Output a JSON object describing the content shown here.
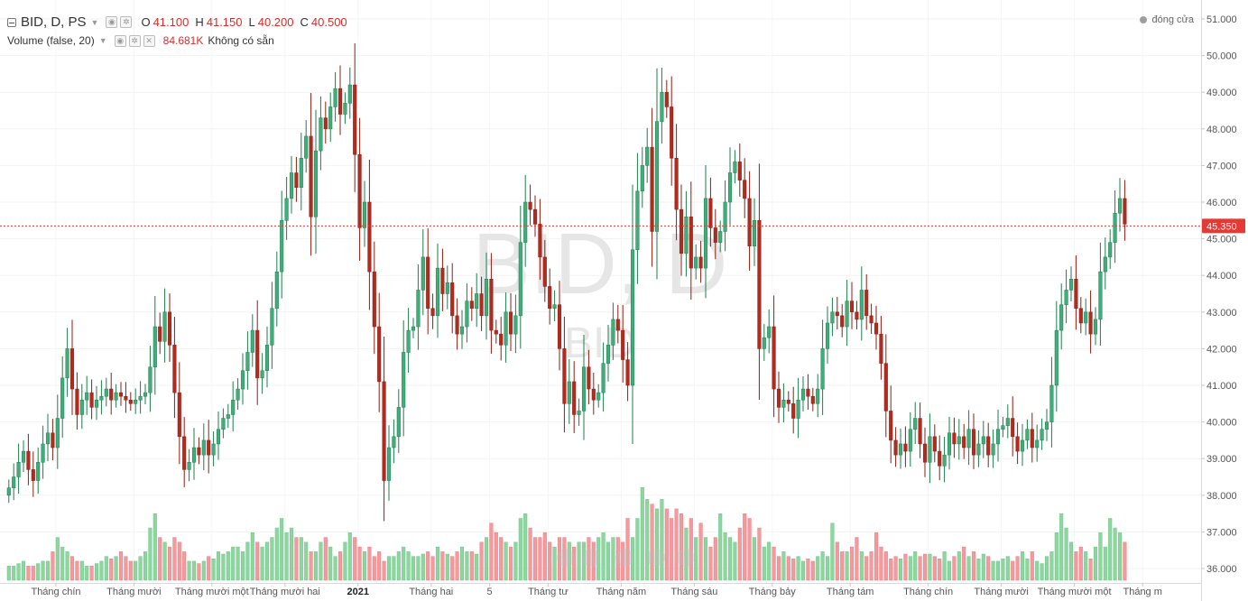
{
  "legend": {
    "symbol": "BID, D, PS",
    "open_label": "O",
    "open_value": "41.100",
    "high_label": "H",
    "high_value": "41.150",
    "low_label": "L",
    "low_value": "40.200",
    "close_label": "C",
    "close_value": "40.500",
    "volume_title": "Volume (false, 20)",
    "volume_value": "84.681K",
    "volume_na": "Không có sẵn"
  },
  "market_status": "đóng cửa",
  "watermark": {
    "main": "BID, D",
    "sub": "BID"
  },
  "colors": {
    "up": "#26a69a",
    "up_fill": "#3fae7b",
    "down": "#b22b1e",
    "vol_up": "#8ed6a0",
    "vol_down": "#f4999d",
    "price_line": "#e53935"
  },
  "chart_data": {
    "type": "candlestick",
    "y_axis": {
      "ticks": [
        "51.000",
        "50.000",
        "49.000",
        "48.000",
        "47.000",
        "46.000",
        "45.000",
        "44.000",
        "43.000",
        "42.000",
        "41.000",
        "40.000",
        "39.000",
        "38.000",
        "37.000",
        "36.000"
      ],
      "range": [
        35.7,
        51.3
      ]
    },
    "current_price": "45.350",
    "x_labels": [
      {
        "label": "Tháng chín",
        "bar": 10
      },
      {
        "label": "Tháng mười",
        "bar": 26
      },
      {
        "label": "Tháng mười một",
        "bar": 42
      },
      {
        "label": "Tháng mười hai",
        "bar": 57
      },
      {
        "label": "2021",
        "bar": 72,
        "bold": true
      },
      {
        "label": "Tháng hai",
        "bar": 87
      },
      {
        "label": "5",
        "bar": 99
      },
      {
        "label": "Tháng tư",
        "bar": 111
      },
      {
        "label": "Tháng năm",
        "bar": 126
      },
      {
        "label": "Tháng sáu",
        "bar": 141
      },
      {
        "label": "Tháng bảy",
        "bar": 157
      },
      {
        "label": "Tháng tám",
        "bar": 173
      },
      {
        "label": "Tháng chín",
        "bar": 189
      },
      {
        "label": "Tháng mười",
        "bar": 204
      },
      {
        "label": "Tháng mười một",
        "bar": 219
      },
      {
        "label": "Tháng m",
        "bar": 233
      }
    ],
    "closes": [
      38.2,
      38.5,
      38.9,
      39.2,
      38.7,
      38.4,
      38.9,
      39.4,
      39.7,
      39.3,
      40.1,
      41.2,
      42.0,
      40.9,
      40.2,
      40.6,
      40.8,
      40.4,
      40.6,
      40.7,
      40.9,
      40.6,
      40.8,
      40.7,
      40.6,
      40.5,
      40.6,
      40.7,
      40.8,
      41.5,
      42.6,
      42.2,
      43.0,
      42.1,
      40.8,
      39.6,
      38.7,
      38.9,
      39.3,
      39.1,
      39.5,
      39.1,
      39.4,
      39.8,
      40.1,
      40.2,
      40.6,
      40.9,
      41.4,
      41.9,
      42.5,
      41.2,
      41.4,
      42.1,
      43.1,
      44.1,
      45.5,
      46.1,
      46.8,
      46.4,
      47.2,
      47.8,
      45.6,
      47.4,
      48.3,
      48.0,
      48.6,
      49.1,
      48.4,
      48.7,
      49.2,
      47.3,
      45.3,
      46.0,
      44.1,
      42.6,
      41.1,
      38.4,
      39.3,
      39.6,
      40.4,
      41.9,
      42.5,
      42.6,
      43.6,
      44.5,
      43.1,
      42.9,
      44.2,
      43.5,
      43.8,
      42.9,
      42.4,
      42.6,
      43.3,
      43.1,
      43.5,
      42.9,
      43.9,
      42.5,
      42.4,
      42.1,
      43.0,
      42.4,
      42.9,
      44.9,
      46.0,
      45.8,
      45.4,
      44.5,
      43.7,
      43.1,
      43.2,
      42.0,
      40.5,
      41.1,
      40.2,
      40.3,
      41.5,
      40.9,
      40.6,
      40.8,
      41.6,
      42.1,
      42.8,
      42.5,
      41.7,
      41.0,
      44.7,
      46.3,
      47.0,
      47.5,
      45.2,
      48.2,
      49.0,
      48.6,
      47.2,
      45.8,
      44.6,
      45.6,
      44.2,
      44.5,
      44.2,
      46.1,
      45.3,
      44.9,
      45.2,
      46.0,
      46.8,
      47.1,
      46.6,
      46.1,
      44.8,
      45.5,
      42.0,
      42.3,
      42.6,
      40.9,
      40.4,
      40.6,
      40.5,
      40.1,
      40.6,
      40.9,
      40.7,
      40.5,
      40.9,
      42.0,
      42.7,
      43.0,
      42.9,
      42.6,
      43.3,
      43.0,
      42.8,
      43.6,
      42.9,
      42.7,
      42.4,
      41.6,
      40.3,
      39.5,
      39.1,
      39.4,
      39.2,
      39.8,
      40.1,
      39.4,
      38.9,
      39.6,
      39.2,
      38.8,
      39.1,
      39.7,
      39.4,
      39.6,
      39.3,
      39.8,
      39.1,
      39.4,
      39.6,
      39.1,
      39.4,
      39.8,
      39.9,
      40.1,
      39.6,
      39.2,
      39.5,
      39.8,
      39.3,
      39.5,
      39.8,
      40.0,
      41.0,
      42.5,
      43.2,
      43.6,
      43.9,
      43.1,
      42.7,
      43.0,
      42.4,
      42.8,
      44.1,
      44.5,
      44.9,
      45.7,
      46.1,
      45.4
    ],
    "volumes": [
      0.3,
      0.3,
      0.35,
      0.4,
      0.3,
      0.3,
      0.35,
      0.4,
      0.4,
      0.6,
      0.9,
      0.7,
      0.6,
      0.5,
      0.4,
      0.4,
      0.3,
      0.3,
      0.35,
      0.4,
      0.5,
      0.45,
      0.5,
      0.6,
      0.5,
      0.4,
      0.4,
      0.5,
      0.6,
      1.1,
      1.4,
      0.9,
      0.8,
      0.7,
      0.9,
      0.8,
      0.6,
      0.4,
      0.4,
      0.35,
      0.4,
      0.5,
      0.45,
      0.6,
      0.55,
      0.6,
      0.7,
      0.7,
      0.6,
      0.8,
      1.0,
      0.8,
      0.7,
      0.8,
      0.9,
      1.1,
      1.3,
      1.0,
      1.1,
      0.9,
      0.9,
      0.8,
      0.6,
      0.6,
      0.8,
      0.9,
      0.7,
      0.5,
      0.6,
      0.8,
      1.0,
      0.9,
      0.7,
      0.6,
      0.7,
      0.5,
      0.6,
      0.4,
      0.5,
      0.5,
      0.6,
      0.7,
      0.6,
      0.5,
      0.5,
      0.55,
      0.6,
      0.5,
      0.7,
      0.6,
      0.55,
      0.5,
      0.6,
      0.7,
      0.6,
      0.6,
      0.55,
      0.8,
      0.9,
      1.2,
      1.0,
      0.9,
      0.8,
      0.7,
      0.8,
      1.3,
      1.4,
      1.1,
      0.9,
      0.9,
      1.0,
      0.8,
      0.7,
      0.9,
      0.9,
      0.8,
      0.7,
      0.8,
      0.8,
      0.9,
      0.8,
      0.9,
      1.0,
      0.8,
      0.9,
      0.9,
      0.8,
      1.3,
      0.9,
      1.3,
      1.95,
      1.7,
      1.6,
      1.5,
      1.7,
      1.5,
      1.3,
      1.5,
      1.4,
      1.1,
      1.3,
      0.9,
      1.2,
      0.9,
      0.7,
      0.9,
      1.4,
      1.0,
      0.9,
      0.8,
      1.1,
      1.4,
      1.3,
      0.9,
      1.1,
      0.7,
      0.8,
      0.7,
      0.5,
      0.6,
      0.5,
      0.45,
      0.5,
      0.4,
      0.45,
      0.4,
      0.5,
      0.6,
      0.5,
      1.2,
      0.8,
      0.6,
      0.6,
      0.7,
      0.9,
      0.6,
      0.5,
      0.6,
      1.0,
      0.7,
      0.6,
      0.45,
      0.5,
      0.45,
      0.55,
      0.5,
      0.6,
      0.5,
      0.55,
      0.55,
      0.5,
      0.45,
      0.6,
      0.4,
      0.5,
      0.6,
      0.7,
      0.5,
      0.6,
      0.45,
      0.55,
      0.5,
      0.4,
      0.4,
      0.45,
      0.5,
      0.4,
      0.5,
      0.6,
      0.45,
      0.6,
      0.4,
      0.35,
      0.5,
      0.6,
      1.0,
      1.4,
      1.1,
      0.8,
      0.6,
      0.7,
      0.6,
      0.45,
      0.7,
      1.0,
      0.7,
      1.3,
      1.1,
      1.0,
      0.8
    ]
  }
}
